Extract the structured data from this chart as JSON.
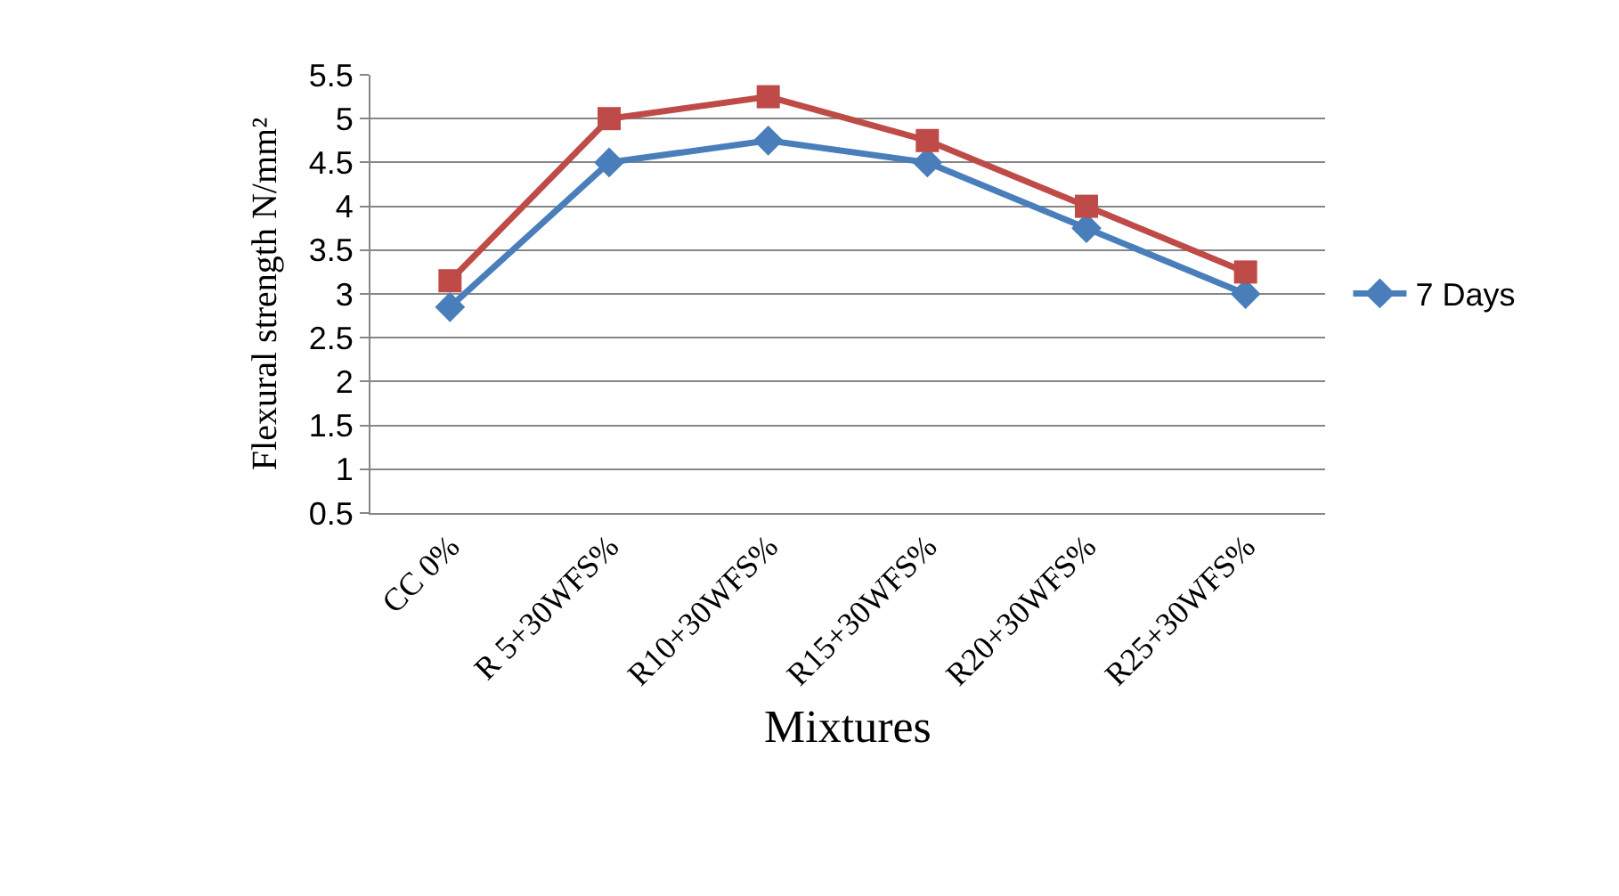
{
  "chart_data": {
    "type": "line",
    "xlabel": "Mixtures",
    "ylabel": "Flexural strength N/mm²",
    "categories": [
      "CC 0%",
      "R 5+30WFS%",
      "R10+30WFS%",
      "R15+30WFS%",
      "R20+30WFS%",
      "R25+30WFS%"
    ],
    "series": [
      {
        "name": "7 Days",
        "color": "#4a7ebb",
        "marker": "diamond",
        "values": [
          2.85,
          4.5,
          4.75,
          4.5,
          3.75,
          3.0
        ]
      },
      {
        "color": "#be4b48",
        "marker": "square",
        "values": [
          3.15,
          5.0,
          5.25,
          4.75,
          4.0,
          3.25
        ]
      }
    ],
    "ylim": [
      0.5,
      5.5
    ],
    "yticks": [
      0.5,
      1,
      1.5,
      2,
      2.5,
      3,
      3.5,
      4,
      4.5,
      5,
      5.5
    ],
    "grid": "y",
    "legend": "right",
    "line_style": "solid"
  }
}
